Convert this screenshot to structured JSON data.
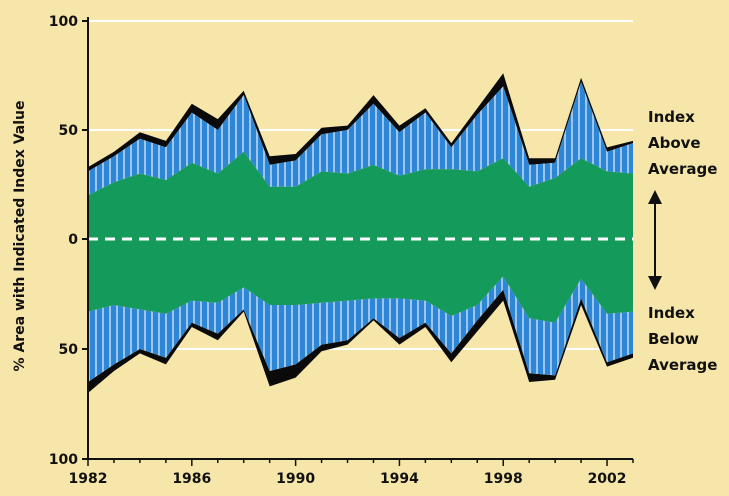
{
  "chart_data": {
    "type": "area",
    "ylabel": "% Area with Indicated Index Value",
    "y_ticks_top": [
      "100",
      "50",
      "0"
    ],
    "y_ticks_bottom": [
      "50",
      "100"
    ],
    "x_ticks": [
      "1982",
      "1986",
      "1990",
      "1994",
      "1998",
      "2002"
    ],
    "xlim": [
      1982,
      2003
    ],
    "ylim": [
      -100,
      100
    ],
    "above_label": [
      "Index",
      "Above",
      "Average"
    ],
    "below_label": [
      "Index",
      "Below",
      "Average"
    ],
    "colors": {
      "background": "#f7e6a9",
      "extreme": "#0a0a0a",
      "moderate": "#2e86d6",
      "near_average": "#149a5a",
      "gridline": "#ffffff"
    },
    "x": [
      1982,
      1983,
      1984,
      1985,
      1986,
      1987,
      1988,
      1989,
      1990,
      1991,
      1992,
      1993,
      1994,
      1995,
      1996,
      1997,
      1998,
      1999,
      2000,
      2001,
      2002,
      2003
    ],
    "series": [
      {
        "values_above_total": [
          33,
          40,
          49,
          45,
          62,
          55,
          68,
          38,
          39,
          51,
          52,
          66,
          52,
          60,
          44,
          60,
          76,
          37,
          37,
          74,
          42,
          45
        ],
        "values_above_moderate": [
          31,
          38,
          46,
          42,
          58,
          50,
          66,
          34,
          36,
          48,
          50,
          62,
          49,
          58,
          42,
          57,
          70,
          34,
          35,
          72,
          40,
          44
        ],
        "values_above_near": [
          20,
          26,
          30,
          27,
          35,
          30,
          40,
          24,
          24,
          31,
          30,
          34,
          29,
          32,
          32,
          31,
          37,
          24,
          28,
          37,
          31,
          30
        ],
        "values_below_near": [
          33,
          30,
          32,
          34,
          28,
          29,
          22,
          30,
          30,
          29,
          28,
          27,
          27,
          28,
          35,
          30,
          17,
          36,
          38,
          18,
          34,
          33
        ],
        "values_below_moderate": [
          65,
          57,
          50,
          54,
          38,
          43,
          32,
          60,
          57,
          48,
          46,
          36,
          45,
          38,
          52,
          37,
          23,
          61,
          62,
          27,
          56,
          52
        ],
        "values_below_total": [
          70,
          60,
          52,
          57,
          40,
          46,
          33,
          67,
          63,
          51,
          48,
          37,
          48,
          40,
          56,
          42,
          28,
          65,
          64,
          30,
          58,
          54
        ]
      }
    ]
  }
}
